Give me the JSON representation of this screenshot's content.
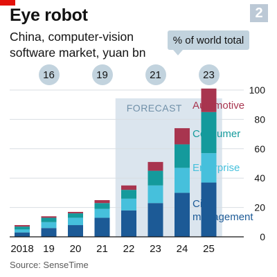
{
  "header": {
    "badge": "2",
    "title": "Eye robot",
    "subtitle": "China, computer-vision software market, yuan bn"
  },
  "share_label": "% of world total",
  "source": "Source: SenseTime",
  "colors": {
    "city_management": "#1c5a96",
    "enterprise": "#46c0dc",
    "consumer": "#149a9c",
    "automotive": "#a8354f",
    "forecast_band": "#dbe5ee",
    "bubble": "#c2d3de",
    "brand_red": "#e3120b"
  },
  "chart_data": {
    "type": "bar",
    "stacked": true,
    "categories": [
      "2018",
      "19",
      "20",
      "21",
      "22",
      "23",
      "24",
      "25"
    ],
    "series": [
      {
        "name": "City management",
        "values": [
          3,
          6,
          8,
          13,
          18,
          23,
          30,
          37
        ]
      },
      {
        "name": "Enterprise",
        "values": [
          2,
          4,
          5,
          6,
          8,
          12,
          17,
          20
        ]
      },
      {
        "name": "Consumer",
        "values": [
          2,
          3,
          3,
          4,
          6,
          10,
          16,
          28
        ]
      },
      {
        "name": "Automotive",
        "values": [
          1,
          1,
          1,
          2,
          3,
          6,
          11,
          16
        ]
      }
    ],
    "ylim": [
      0,
      100
    ],
    "yticks": [
      "0",
      "20",
      "40",
      "60",
      "80",
      "100"
    ],
    "y_axis_side": "right",
    "forecast_label": "FORECAST",
    "forecast_categories": [
      "22",
      "23",
      "24",
      "25"
    ],
    "world_share": [
      {
        "category": "19",
        "value": "16"
      },
      {
        "category": "21",
        "value": "19"
      },
      {
        "category": "23",
        "value": "21"
      },
      {
        "category": "25",
        "value": "23"
      }
    ]
  }
}
